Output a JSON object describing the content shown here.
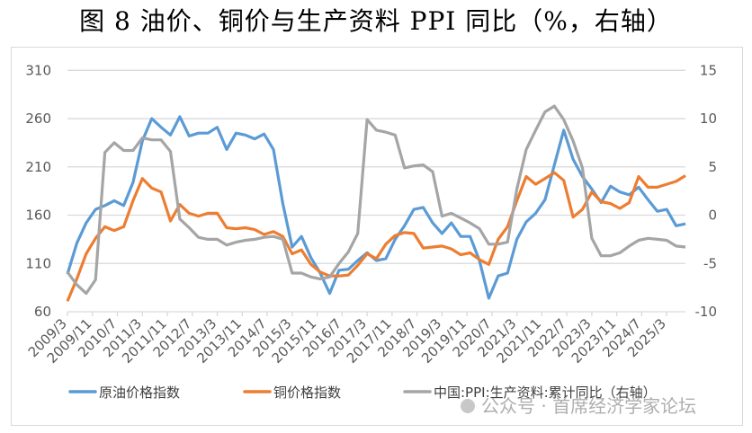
{
  "title": "图 8 油价、铜价与生产资料 PPI 同比（%，右轴）",
  "watermark": "公众号 · 首席经济学家论坛",
  "chart_data": {
    "type": "line",
    "title": "图 8 油价、铜价与生产资料 PPI 同比（%，右轴）",
    "x_start": "2009/3",
    "x_frequency": "quarterly",
    "x_tick_labels": [
      "2009/3",
      "2009/11",
      "2010/7",
      "2011/3",
      "2011/11",
      "2012/7",
      "2013/3",
      "2013/11",
      "2014/7",
      "2015/3",
      "2015/11",
      "2016/7",
      "2017/3",
      "2017/11",
      "2018/7",
      "2019/3",
      "2019/11",
      "2020/7",
      "2021/3",
      "2021/11",
      "2022/7",
      "2023/3",
      "2023/11",
      "2024/7",
      "2025/3"
    ],
    "y_left": {
      "range": [
        60,
        310
      ],
      "ticks": [
        "60",
        "110",
        "160",
        "210",
        "260",
        "310"
      ]
    },
    "y_right": {
      "range": [
        -10,
        15
      ],
      "ticks": [
        "-10",
        "-5",
        "0",
        "5",
        "10",
        "15"
      ]
    },
    "grid": true,
    "legend_position": "bottom",
    "series": [
      {
        "name": "原油价格指数",
        "axis": "left",
        "color": "#5B9BD5",
        "values": [
          99,
          131,
          152,
          166,
          170,
          175,
          170,
          194,
          237,
          260,
          251,
          243,
          262,
          242,
          245,
          245,
          251,
          228,
          245,
          243,
          239,
          244,
          228,
          172,
          127,
          138,
          116,
          100,
          79,
          103,
          104,
          113,
          121,
          113,
          115,
          135,
          149,
          166,
          168,
          152,
          141,
          152,
          138,
          138,
          113,
          74,
          97,
          100,
          135,
          153,
          162,
          176,
          212,
          248,
          218,
          200,
          187,
          173,
          190,
          184,
          181,
          189,
          176,
          164,
          166,
          149,
          151
        ]
      },
      {
        "name": "铜价格指数",
        "axis": "left",
        "color": "#ED7D31",
        "values": [
          71,
          94,
          120,
          136,
          148,
          144,
          148,
          175,
          198,
          188,
          184,
          154,
          171,
          162,
          159,
          162,
          162,
          147,
          146,
          147,
          145,
          140,
          143,
          138,
          120,
          124,
          109,
          101,
          97,
          97,
          98,
          108,
          120,
          115,
          130,
          139,
          142,
          141,
          126,
          127,
          128,
          125,
          119,
          121,
          114,
          109,
          135,
          148,
          175,
          200,
          192,
          198,
          204,
          196,
          158,
          166,
          184,
          174,
          172,
          167,
          173,
          200,
          189,
          189,
          192,
          195,
          201
        ]
      },
      {
        "name": "中国:PPI:生产资料:累计同比（右轴）",
        "axis": "right",
        "color": "#A5A5A5",
        "values": [
          -5.9,
          -7.2,
          -8.1,
          -6.7,
          6.5,
          7.5,
          6.7,
          6.7,
          8.0,
          7.8,
          7.8,
          6.6,
          -0.4,
          -1.3,
          -2.3,
          -2.5,
          -2.5,
          -3.1,
          -2.8,
          -2.6,
          -2.5,
          -2.3,
          -2.2,
          -2.5,
          -6.0,
          -6.0,
          -6.4,
          -6.6,
          -6.4,
          -5.0,
          -3.8,
          -1.9,
          9.9,
          8.8,
          8.6,
          8.3,
          4.9,
          5.1,
          5.2,
          4.5,
          -0.1,
          0.2,
          -0.3,
          -0.8,
          -1.4,
          -3.0,
          -3.0,
          -2.8,
          2.7,
          6.8,
          8.8,
          10.7,
          11.3,
          9.9,
          7.7,
          4.9,
          -2.4,
          -4.2,
          -4.2,
          -3.9,
          -3.2,
          -2.6,
          -2.4,
          -2.5,
          -2.6,
          -3.2,
          -3.3
        ]
      }
    ]
  }
}
